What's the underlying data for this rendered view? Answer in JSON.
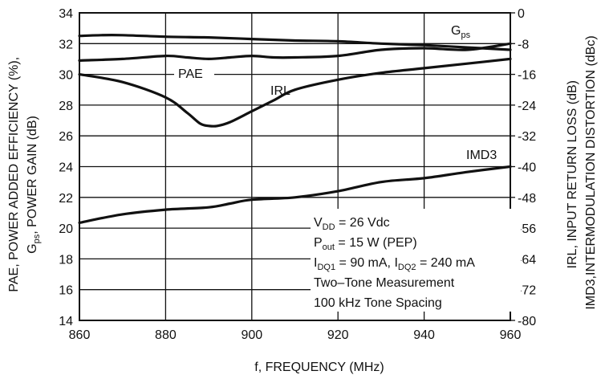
{
  "chart_data": {
    "type": "line",
    "xlabel": "f, FREQUENCY (MHz)",
    "ylabel_left": [
      "PAE, POWER ADDED EFFICIENCY (%),",
      "G",
      "ps",
      ", POWER GAIN (dB)"
    ],
    "ylabel_right": [
      "IRL,  INPUT RETURN LOSS (dB)",
      "IMD3,INTERMODULATION DISTORTION (dBc)"
    ],
    "xlim": [
      860,
      960
    ],
    "ylim_left": [
      14,
      34
    ],
    "ylim_right": [
      -80,
      0
    ],
    "grid": true,
    "x_ticks": [
      "860",
      "880",
      "900",
      "920",
      "940",
      "960"
    ],
    "y_left_ticks": [
      "14",
      "16",
      "18",
      "20",
      "22",
      "24",
      "26",
      "28",
      "30",
      "32",
      "34"
    ],
    "y_right_ticks": [
      "-80",
      "-72",
      "-64",
      "-56",
      "-48",
      "-40",
      "-32",
      "-24",
      "-16",
      "-8",
      "0"
    ],
    "series": [
      {
        "name": "G",
        "sub": "ps",
        "axis": "left",
        "x": [
          860,
          865,
          870,
          880,
          890,
          900,
          910,
          920,
          930,
          940,
          950,
          960
        ],
        "y": [
          32.5,
          32.55,
          32.55,
          32.45,
          32.4,
          32.3,
          32.2,
          32.15,
          32.0,
          31.9,
          31.75,
          31.6
        ]
      },
      {
        "name": "PAE",
        "axis": "left",
        "x": [
          860,
          870,
          880,
          885,
          890,
          895,
          900,
          905,
          910,
          920,
          930,
          940,
          950,
          960
        ],
        "y": [
          30.9,
          31.0,
          31.2,
          31.1,
          31.0,
          31.1,
          31.2,
          31.1,
          31.1,
          31.2,
          31.6,
          31.7,
          31.6,
          32.0
        ]
      },
      {
        "name": "IRL",
        "axis": "right",
        "x": [
          860,
          870,
          880,
          885,
          888,
          890,
          892,
          895,
          900,
          905,
          910,
          920,
          930,
          940,
          950,
          960
        ],
        "y": [
          -16.0,
          -18.0,
          -22.0,
          -26.0,
          -28.8,
          -29.4,
          -29.4,
          -28.4,
          -25.6,
          -22.8,
          -20.0,
          -17.4,
          -15.6,
          -14.4,
          -13.2,
          -12.0
        ]
      },
      {
        "name": "IMD3",
        "axis": "right",
        "x": [
          860,
          870,
          880,
          890,
          895,
          900,
          910,
          920,
          930,
          940,
          950,
          960
        ],
        "y": [
          -54.6,
          -52.4,
          -51.2,
          -50.6,
          -49.6,
          -48.6,
          -48.0,
          -46.4,
          -44.0,
          -43.0,
          -41.4,
          -40.0
        ]
      }
    ],
    "labels": {
      "gps_main": "G",
      "gps_sub": "ps",
      "pae": "PAE",
      "irl": "IRL",
      "imd3": "IMD3"
    },
    "annotations": [
      {
        "key": "vdd",
        "main": "V",
        "sub": "DD",
        "rest": " = 26 Vdc"
      },
      {
        "key": "pout",
        "main": "P",
        "sub": "out",
        "rest": " = 15 W (PEP)"
      },
      {
        "key": "idq",
        "main": "I",
        "sub": "DQ1",
        "rest": " = 90 mA, I",
        "sub2": "DQ2",
        "rest2": " = 240 mA"
      },
      {
        "key": "twotone",
        "main": "Two–Tone Measurement"
      },
      {
        "key": "spacing",
        "main": "100 kHz Tone Spacing"
      }
    ]
  }
}
